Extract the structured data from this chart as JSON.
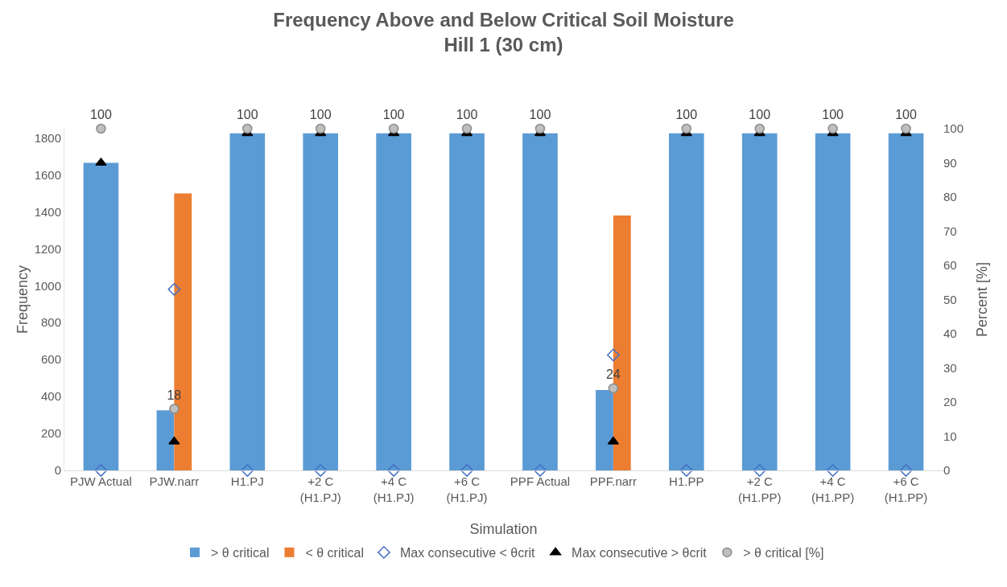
{
  "chart_data": {
    "type": "bar",
    "title": "Frequency Above and Below Critical Soil Moisture\nHill 1 (30 cm)",
    "xlabel": "Simulation",
    "ylabel": "Frequency",
    "y2label": "Percent [%]",
    "categories": [
      "PJW Actual",
      "PJW.narr",
      "H1.PJ",
      "+2 C\n(H1.PJ)",
      "+4 C\n(H1.PJ)",
      "+6 C\n(H1.PJ)",
      "PPF Actual",
      "PPF.narr",
      "H1.PP",
      "+2 C\n(H1.PP)",
      "+4 C\n(H1.PP)",
      "+6 C\n(H1.PP)"
    ],
    "series": [
      {
        "name": "> θ critical",
        "color": "#5b9bd5",
        "values": [
          1665,
          325,
          1825,
          1825,
          1825,
          1825,
          1825,
          435,
          1825,
          1825,
          1825,
          1825
        ]
      },
      {
        "name": "< θ critical",
        "color": "#ed7d31",
        "values": [
          null,
          1500,
          null,
          null,
          null,
          null,
          null,
          1380,
          null,
          null,
          null,
          null
        ]
      },
      {
        "name": "Max consecutive < θcrit",
        "type": "scatter",
        "marker": "diamond",
        "color": "#4472c4",
        "values": [
          0,
          980,
          0,
          0,
          0,
          0,
          0,
          625,
          0,
          0,
          0,
          0
        ]
      },
      {
        "name": "Max consecutive > θcrit",
        "type": "scatter",
        "marker": "triangle",
        "color": "#000000",
        "values": [
          1665,
          156,
          1825,
          1825,
          1825,
          1825,
          1825,
          156,
          1825,
          1825,
          1825,
          1825
        ]
      },
      {
        "name": "> θ critical [%]",
        "type": "scatter",
        "marker": "circle",
        "color": "#bfbfbf",
        "axis": "y2",
        "data_labels": true,
        "values": [
          100,
          18,
          100,
          100,
          100,
          100,
          100,
          24,
          100,
          100,
          100,
          100
        ]
      }
    ],
    "ylim": [
      0,
      1850
    ],
    "yticks": [
      0,
      200,
      400,
      600,
      800,
      1000,
      1200,
      1400,
      1600,
      1800
    ],
    "y2lim": [
      0,
      100
    ],
    "y2ticks": [
      0,
      10,
      20,
      30,
      40,
      50,
      60,
      70,
      80,
      90,
      100
    ],
    "grid": false,
    "legend": "bottom"
  }
}
